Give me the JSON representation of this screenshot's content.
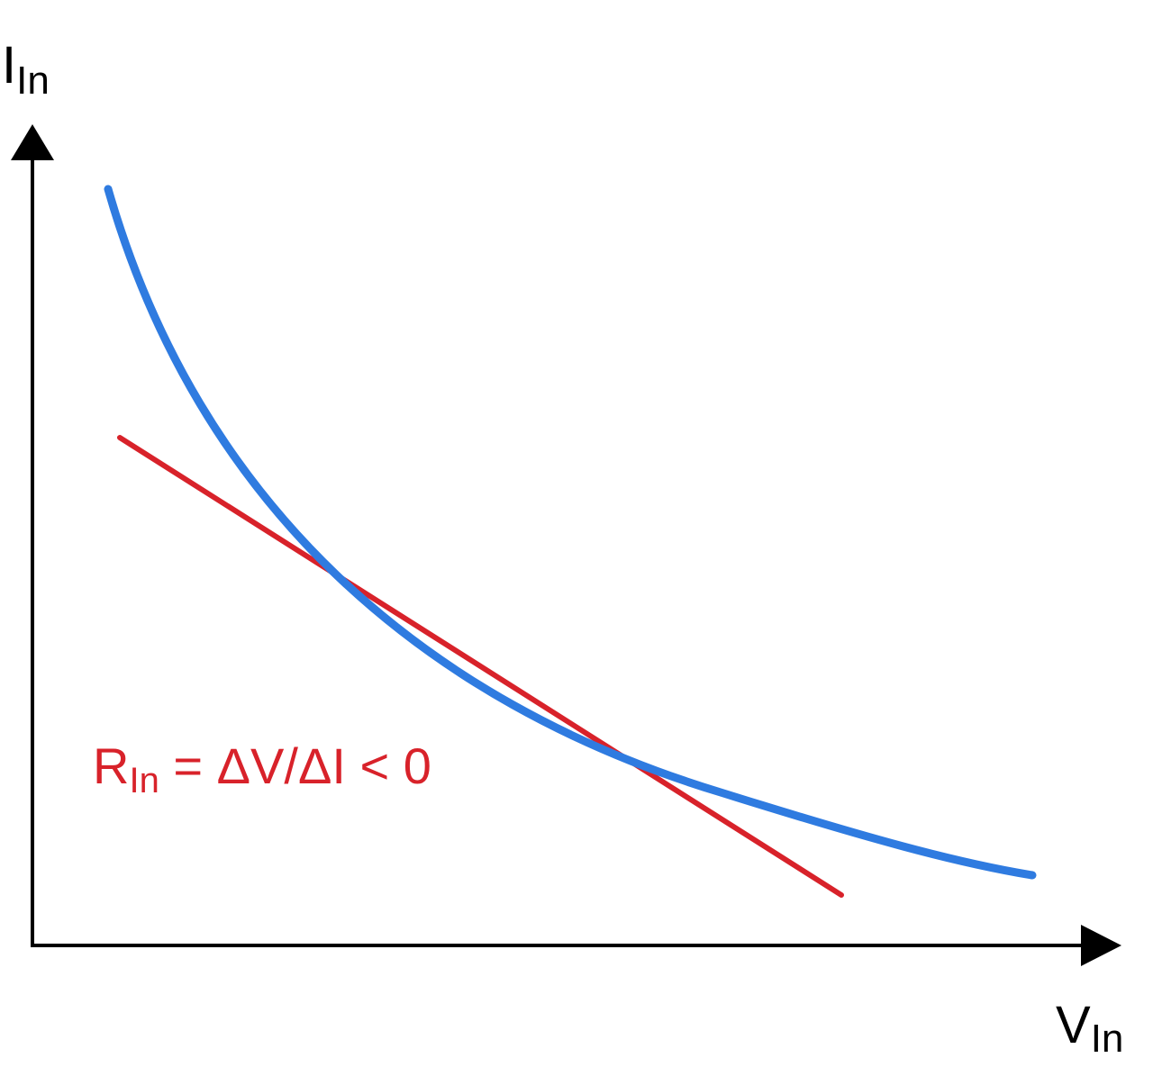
{
  "diagram": {
    "y_axis": {
      "label_main": "I",
      "label_sub": "In"
    },
    "x_axis": {
      "label_main": "V",
      "label_sub": "In"
    },
    "annotation": {
      "prefix": "R",
      "sub": "In",
      "suffix": " = ΔV/ΔI < 0"
    },
    "colors": {
      "curve": "#2f7be0",
      "tangent": "#d8222a",
      "axis": "#000000",
      "annotation": "#d8222a"
    }
  }
}
